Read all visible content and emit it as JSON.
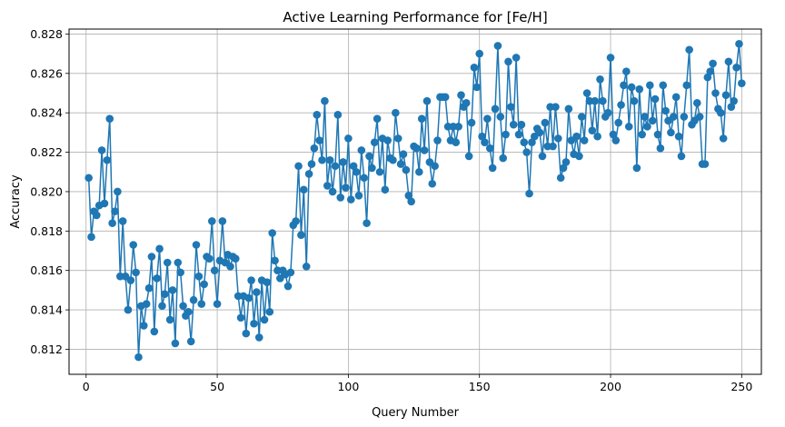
{
  "chart_data": {
    "type": "line",
    "title": "Active Learning Performance for [Fe/H]",
    "xlabel": "Query Number",
    "ylabel": "Accuracy",
    "xlim": [
      -6.5,
      257.5
    ],
    "ylim": [
      0.81073,
      0.82825
    ],
    "xticks": [
      0,
      50,
      100,
      150,
      200,
      250
    ],
    "yticks": [
      0.812,
      0.814,
      0.816,
      0.818,
      0.82,
      0.822,
      0.824,
      0.826,
      0.828
    ],
    "ytick_labels": [
      "0.812",
      "0.814",
      "0.816",
      "0.818",
      "0.820",
      "0.822",
      "0.824",
      "0.826",
      "0.828"
    ],
    "grid": true,
    "legend": "none",
    "markers": "circle",
    "color": "#1f77b4",
    "series": [
      {
        "x": [
          1,
          2,
          3,
          4,
          5,
          6,
          7,
          8,
          9,
          10,
          11,
          12,
          13,
          14,
          15,
          16,
          17,
          18,
          19,
          20,
          21,
          22,
          23,
          24,
          25,
          26,
          27,
          28,
          29,
          30,
          31,
          32,
          33,
          34,
          35,
          36,
          37,
          38,
          39,
          40,
          41,
          42,
          43,
          44,
          45,
          46,
          47,
          48,
          49,
          50,
          51,
          52,
          53,
          54,
          55,
          56,
          57,
          58,
          59,
          60,
          61,
          62,
          63,
          64,
          65,
          66,
          67,
          68,
          69,
          70,
          71,
          72,
          73,
          74,
          75,
          76,
          77,
          78,
          79,
          80,
          81,
          82,
          83,
          84,
          85,
          86,
          87,
          88,
          89,
          90,
          91,
          92,
          93,
          94,
          95,
          96,
          97,
          98,
          99,
          100,
          101,
          102,
          103,
          104,
          105,
          106,
          107,
          108,
          109,
          110,
          111,
          112,
          113,
          114,
          115,
          116,
          117,
          118,
          119,
          120,
          121,
          122,
          123,
          124,
          125,
          126,
          127,
          128,
          129,
          130,
          131,
          132,
          133,
          134,
          135,
          136,
          137,
          138,
          139,
          140,
          141,
          142,
          143,
          144,
          145,
          146,
          147,
          148,
          149,
          150,
          151,
          152,
          153,
          154,
          155,
          156,
          157,
          158,
          159,
          160,
          161,
          162,
          163,
          164,
          165,
          166,
          167,
          168,
          169,
          170,
          171,
          172,
          173,
          174,
          175,
          176,
          177,
          178,
          179,
          180,
          181,
          182,
          183,
          184,
          185,
          186,
          187,
          188,
          189,
          190,
          191,
          192,
          193,
          194,
          195,
          196,
          197,
          198,
          199,
          200,
          201,
          202,
          203,
          204,
          205,
          206,
          207,
          208,
          209,
          210,
          211,
          212,
          213,
          214,
          215,
          216,
          217,
          218,
          219,
          220,
          221,
          222,
          223,
          224,
          225,
          226,
          227,
          228,
          229,
          230,
          231,
          232,
          233,
          234,
          235,
          236,
          237,
          238,
          239,
          240,
          241,
          242,
          243,
          244,
          245,
          246,
          247,
          248,
          249,
          250
        ],
        "y": [
          0.8207,
          0.8177,
          0.819,
          0.8188,
          0.8193,
          0.8221,
          0.8194,
          0.8216,
          0.8237,
          0.8184,
          0.819,
          0.82,
          0.8157,
          0.8185,
          0.8157,
          0.814,
          0.8155,
          0.8173,
          0.8159,
          0.8116,
          0.8142,
          0.8132,
          0.8143,
          0.8151,
          0.8167,
          0.8129,
          0.8156,
          0.8171,
          0.8142,
          0.8148,
          0.8164,
          0.8135,
          0.815,
          0.8123,
          0.8164,
          0.8159,
          0.8142,
          0.8137,
          0.8139,
          0.8124,
          0.8145,
          0.8173,
          0.8157,
          0.8143,
          0.8153,
          0.8167,
          0.8166,
          0.8185,
          0.816,
          0.8143,
          0.8165,
          0.8185,
          0.8164,
          0.8168,
          0.8162,
          0.8167,
          0.8166,
          0.8147,
          0.8136,
          0.8147,
          0.8128,
          0.8146,
          0.8155,
          0.8133,
          0.8149,
          0.8126,
          0.8155,
          0.8135,
          0.8154,
          0.8139,
          0.8179,
          0.8165,
          0.816,
          0.8156,
          0.816,
          0.8158,
          0.8152,
          0.8159,
          0.8183,
          0.8185,
          0.8213,
          0.8178,
          0.8201,
          0.8162,
          0.8209,
          0.8214,
          0.8222,
          0.8239,
          0.8226,
          0.8216,
          0.8246,
          0.8203,
          0.8216,
          0.82,
          0.8213,
          0.8239,
          0.8197,
          0.8215,
          0.8202,
          0.8227,
          0.8196,
          0.8213,
          0.821,
          0.8198,
          0.8221,
          0.8207,
          0.8184,
          0.8218,
          0.8212,
          0.8225,
          0.8237,
          0.821,
          0.8227,
          0.8201,
          0.8226,
          0.8217,
          0.8216,
          0.824,
          0.8227,
          0.8214,
          0.8219,
          0.8211,
          0.8198,
          0.8195,
          0.8223,
          0.8222,
          0.821,
          0.8237,
          0.8221,
          0.8246,
          0.8215,
          0.8204,
          0.8213,
          0.8226,
          0.8248,
          0.8248,
          0.8248,
          0.8233,
          0.8226,
          0.8233,
          0.8225,
          0.8233,
          0.8249,
          0.8243,
          0.8245,
          0.8218,
          0.8235,
          0.8263,
          0.8253,
          0.827,
          0.8228,
          0.8225,
          0.8237,
          0.8222,
          0.8212,
          0.8242,
          0.8274,
          0.8238,
          0.8217,
          0.8229,
          0.8266,
          0.8243,
          0.8234,
          0.8268,
          0.8229,
          0.8234,
          0.8225,
          0.822,
          0.8199,
          0.8225,
          0.8228,
          0.8232,
          0.823,
          0.8218,
          0.8235,
          0.8223,
          0.8243,
          0.8223,
          0.8243,
          0.8227,
          0.8207,
          0.8212,
          0.8215,
          0.8242,
          0.8226,
          0.8219,
          0.8228,
          0.8218,
          0.8238,
          0.8226,
          0.825,
          0.8246,
          0.8231,
          0.8246,
          0.8228,
          0.8257,
          0.8246,
          0.8238,
          0.824,
          0.8268,
          0.8229,
          0.8226,
          0.8235,
          0.8244,
          0.8254,
          0.8261,
          0.8233,
          0.8253,
          0.8246,
          0.8212,
          0.8252,
          0.8229,
          0.8238,
          0.8233,
          0.8254,
          0.8236,
          0.8247,
          0.8229,
          0.8222,
          0.8254,
          0.8241,
          0.8236,
          0.823,
          0.8238,
          0.8248,
          0.8228,
          0.8218,
          0.8238,
          0.8254,
          0.8272,
          0.8234,
          0.8236,
          0.8245,
          0.8238,
          0.8214,
          0.8214,
          0.8258,
          0.8261,
          0.8265,
          0.825,
          0.8242,
          0.824,
          0.8227,
          0.8249,
          0.8266,
          0.8243,
          0.8246,
          0.8263,
          0.8275,
          0.8255
        ]
      }
    ]
  }
}
